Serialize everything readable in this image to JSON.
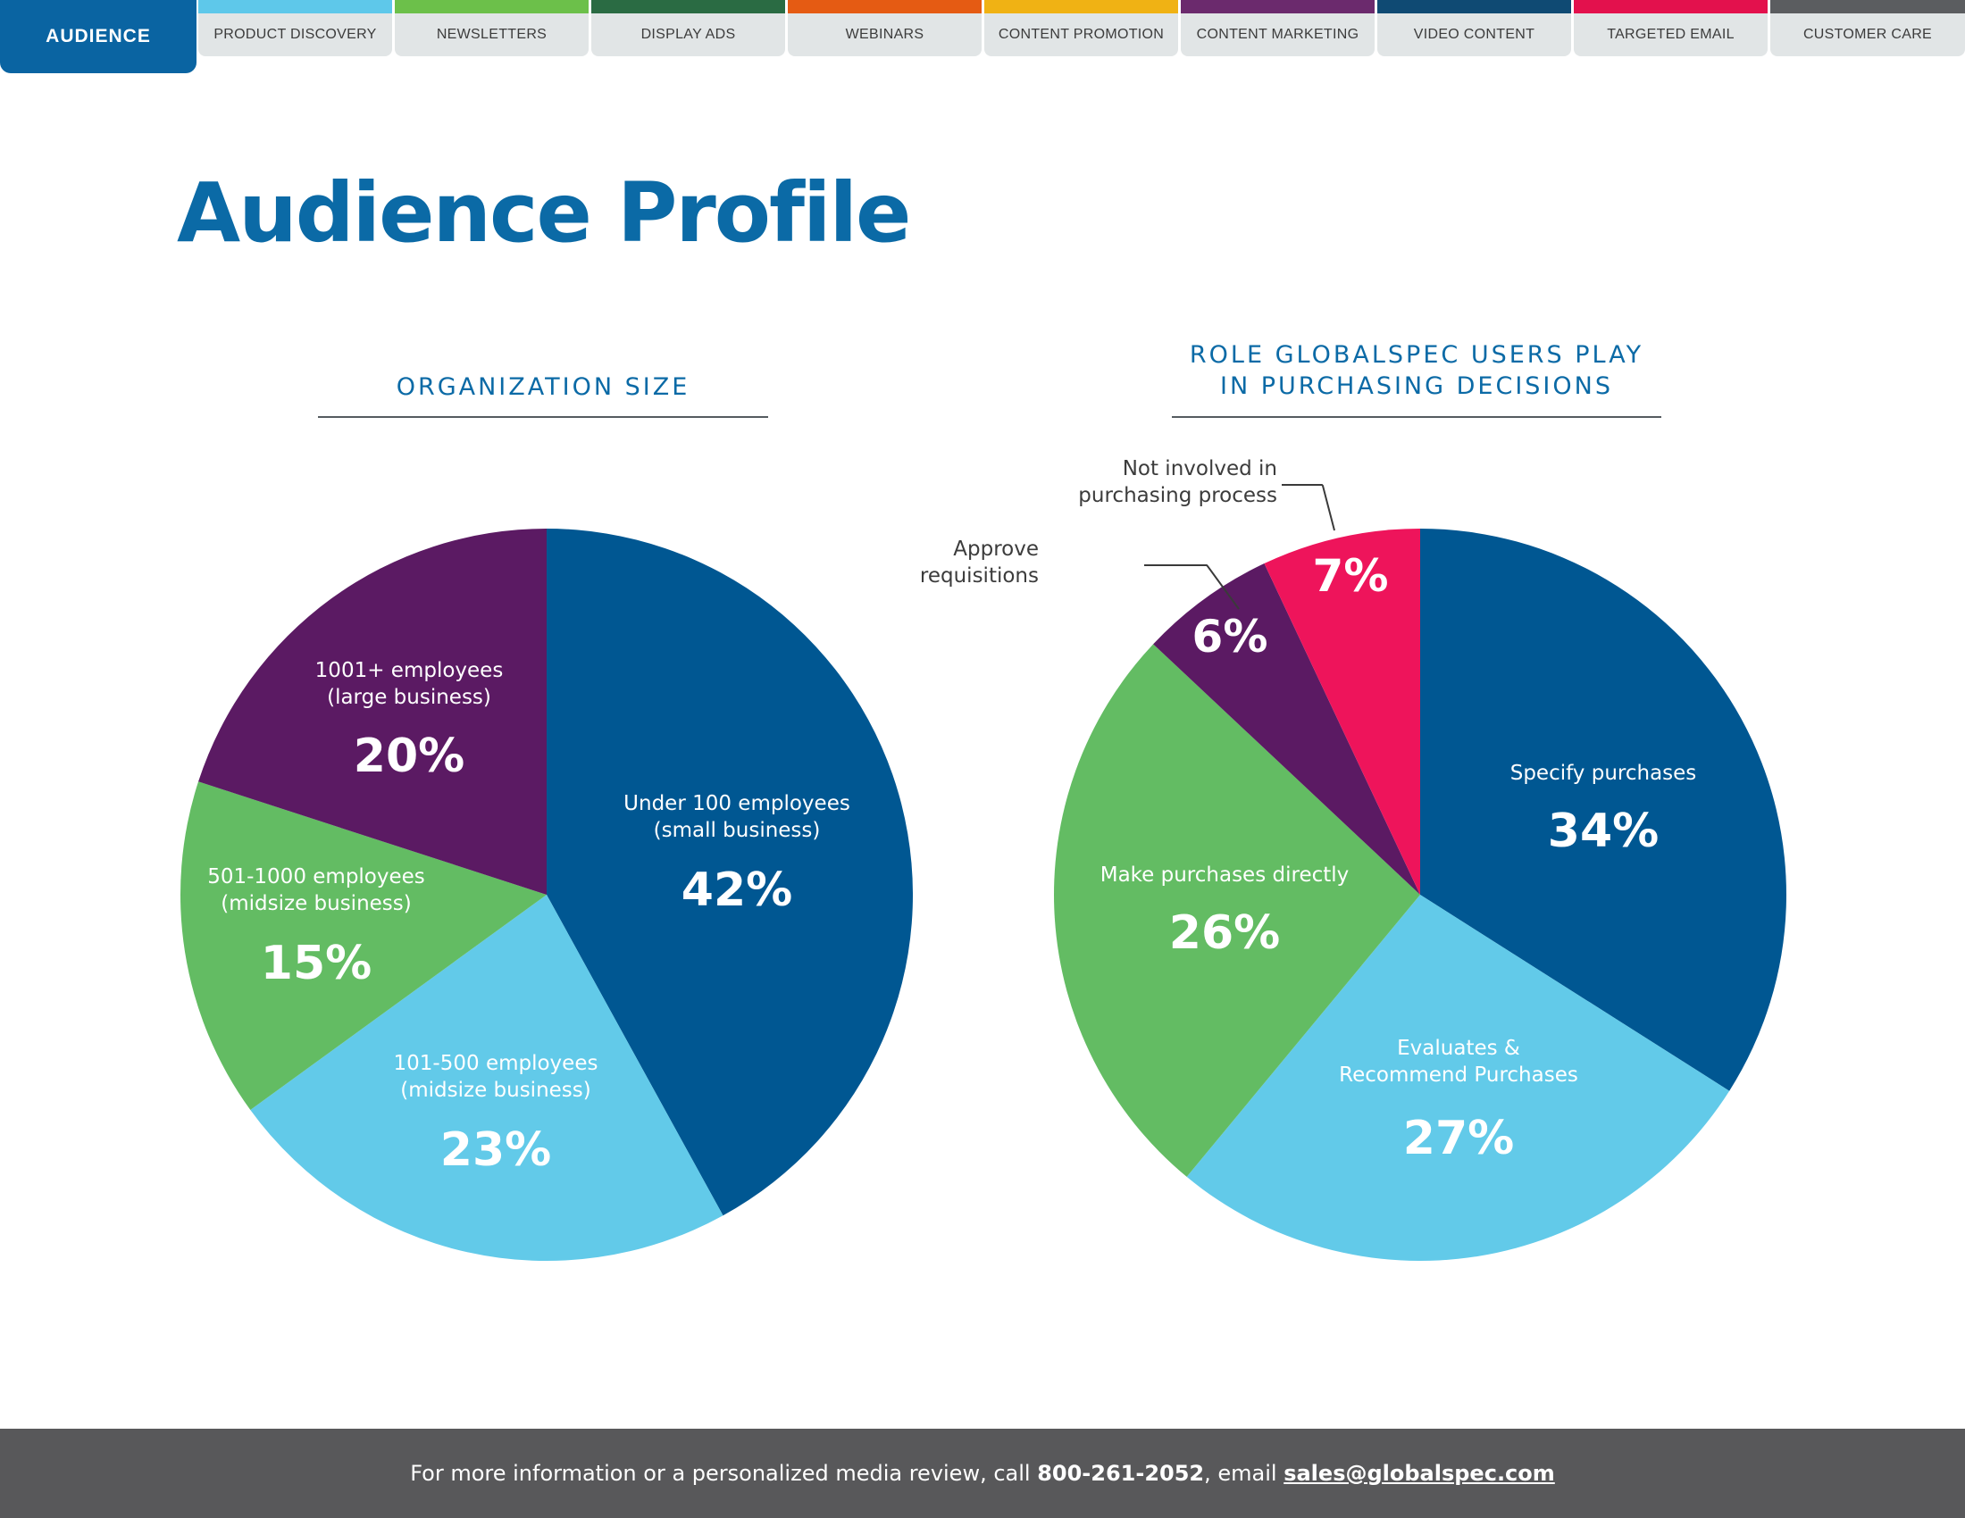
{
  "tabs": [
    {
      "label": "AUDIENCE",
      "color": "#0a64a2",
      "active": true
    },
    {
      "label": "PRODUCT DISCOVERY",
      "color": "#5ec8ea"
    },
    {
      "label": "NEWSLETTERS",
      "color": "#6cc04a"
    },
    {
      "label": "DISPLAY ADS",
      "color": "#2a6b43"
    },
    {
      "label": "WEBINARS",
      "color": "#e55b13"
    },
    {
      "label": "CONTENT PROMOTION",
      "color": "#f0b214"
    },
    {
      "label": "CONTENT MARKETING",
      "color": "#6b2a6d"
    },
    {
      "label": "VIDEO CONTENT",
      "color": "#0f4a73"
    },
    {
      "label": "TARGETED EMAIL",
      "color": "#e3114d"
    },
    {
      "label": "CUSTOMER CARE",
      "color": "#5b5d60"
    }
  ],
  "page": {
    "title": "Audience Profile"
  },
  "chart_data": [
    {
      "type": "pie",
      "title": "ORGANIZATION SIZE",
      "slices": [
        {
          "label_lines": [
            "Under 100 employees",
            "(small business)"
          ],
          "value": 42,
          "display": "42%",
          "color": "#005792"
        },
        {
          "label_lines": [
            "101-500 employees",
            "(midsize business)"
          ],
          "value": 23,
          "display": "23%",
          "color": "#62cae9"
        },
        {
          "label_lines": [
            "501-1000 employees",
            "(midsize business)"
          ],
          "value": 15,
          "display": "15%",
          "color": "#63bc63"
        },
        {
          "label_lines": [
            "1001+ employees",
            "(large business)"
          ],
          "value": 20,
          "display": "20%",
          "color": "#5b1a63"
        }
      ]
    },
    {
      "type": "pie",
      "title_lines": [
        "ROLE GLOBALSPEC USERS PLAY",
        "IN PURCHASING DECISIONS"
      ],
      "slices": [
        {
          "label_lines": [
            "Specify purchases"
          ],
          "value": 34,
          "display": "34%",
          "color": "#005792"
        },
        {
          "label_lines": [
            "Evaluates &",
            "Recommend Purchases"
          ],
          "value": 27,
          "display": "27%",
          "color": "#62cae9"
        },
        {
          "label_lines": [
            "Make purchases directly"
          ],
          "value": 26,
          "display": "26%",
          "color": "#63bc63"
        },
        {
          "label_lines": [
            "Approve",
            "requisitions"
          ],
          "value": 6,
          "display": "6%",
          "color": "#5b1a63",
          "callout": true
        },
        {
          "label_lines": [
            "Not involved in",
            "purchasing process"
          ],
          "value": 7,
          "display": "7%",
          "color": "#ee145b",
          "callout": true
        }
      ]
    }
  ],
  "footer": {
    "text_before": "For more information or a personalized media review, call ",
    "phone": "800-261-2052",
    "text_middle": ", email ",
    "email": "sales@globalspec.com"
  }
}
